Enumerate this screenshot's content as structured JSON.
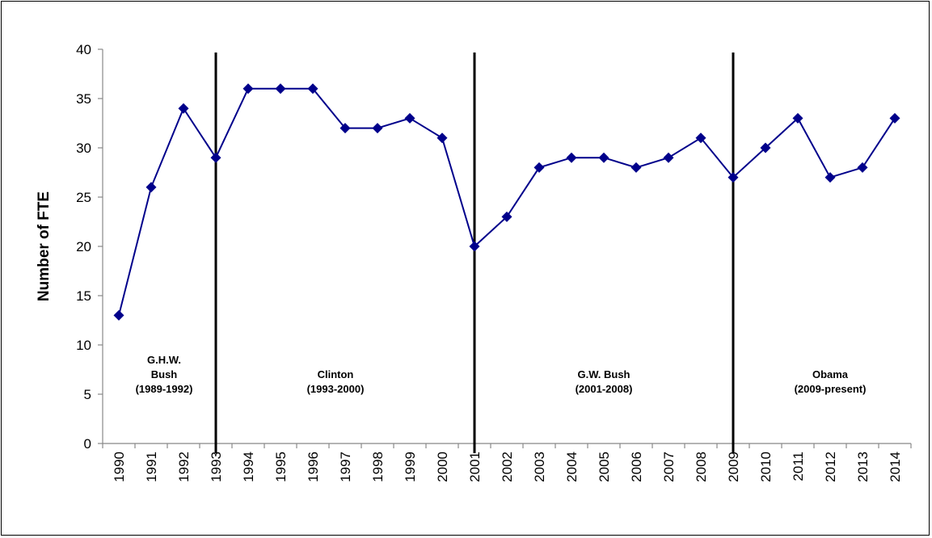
{
  "chart_data": {
    "type": "line",
    "title": "",
    "xlabel": "",
    "ylabel": "Number of FTE",
    "ylim": [
      0,
      40
    ],
    "yticks": [
      "0",
      "5",
      "10",
      "15",
      "20",
      "25",
      "30",
      "35",
      "40"
    ],
    "categories": [
      "1990",
      "1991",
      "1992",
      "1993",
      "1994",
      "1995",
      "1996",
      "1997",
      "1998",
      "1999",
      "2000",
      "2001",
      "2002",
      "2003",
      "2004",
      "2005",
      "2006",
      "2007",
      "2008",
      "2009",
      "2010",
      "2011",
      "2012",
      "2013",
      "2014"
    ],
    "series": [
      {
        "values": [
          13,
          26,
          34,
          29,
          36,
          36,
          36,
          32,
          32,
          33,
          31,
          20,
          23,
          28,
          29,
          29,
          28,
          29,
          31,
          27,
          30,
          33,
          27,
          28,
          33
        ]
      }
    ],
    "line_color": "#00008B",
    "grid": false,
    "legend": "none",
    "dividers": [
      "1993",
      "2001",
      "2009"
    ],
    "annotations": [
      {
        "lines": [
          "G.H.W.",
          "Bush",
          "(1989-1992)"
        ],
        "center": "1991.4"
      },
      {
        "lines": [
          "Clinton",
          "(1993-2000)"
        ],
        "center": "1996.7"
      },
      {
        "lines": [
          "G.W. Bush",
          "(2001-2008)"
        ],
        "center": "2005"
      },
      {
        "lines": [
          "Obama",
          "(2009-present)"
        ],
        "center": "2012"
      }
    ]
  }
}
